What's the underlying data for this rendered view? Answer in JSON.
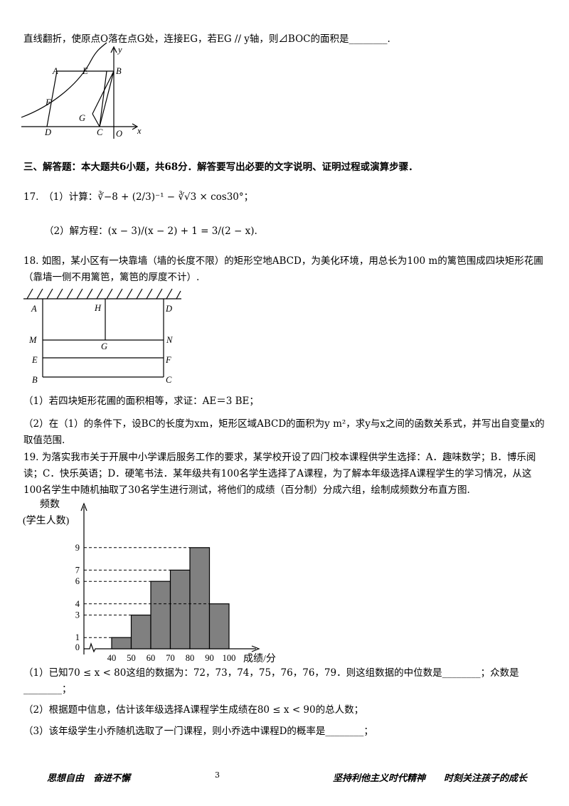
{
  "q16_tail": "直线翻折，使原点O落在点G处，连接EG，若EG // y轴，则⊿BOC的面积是________.",
  "figure1": {
    "labels": [
      "y",
      "A",
      "E",
      "B",
      "F",
      "G",
      "D",
      "C",
      "O",
      "x"
    ]
  },
  "section3": "三、解答题：本大题共6小题，共68分．解答要写出必要的文字说明、证明过程或演算步骤．",
  "q17": {
    "part1": "17.　（1）计算：∛−8 + (2/3)⁻¹ − ∛√3 × cos30°；",
    "part2": "（2）解方程：(x − 3)/(x − 2) + 1 = 3/(2 − x)."
  },
  "q18": {
    "intro": "18. 如图，某小区有一块靠墙（墙的长度不限）的矩形空地ABCD，为美化环境，用总长为100 m的篱笆围成四块矩形花圃（靠墙一侧不用篱笆，篱笆的厚度不计）.",
    "figure_labels": [
      "A",
      "H",
      "D",
      "M",
      "G",
      "N",
      "E",
      "F",
      "B",
      "C"
    ],
    "part1": "（1）若四块矩形花圃的面积相等，求证：AE＝3 BE；",
    "part2": "（2）在（1）的条件下，设BC的长度为xm，矩形区域ABCD的面积为y m²，求y与x之间的函数关系式，并写出自变量x的取值范围."
  },
  "q19": {
    "intro": "19. 为落实我市关于开展中小学课后服务工作的要求，某学校开设了四门校本课程供学生选择：A．趣味数学；B．博乐阅读；C．快乐英语；D．硬笔书法．某年级共有100名学生选择了A课程，为了解本年级选择A课程学生的学习情况，从这100名学生中随机抽取了30名学生进行测试，将他们的成绩（百分制）分成六组，绘制成频数分布直方图.",
    "histogram": {
      "type": "histogram",
      "y_label": [
        "频数",
        "(学生人数)"
      ],
      "x_label": "成绩/分",
      "bins": [
        40,
        50,
        60,
        70,
        80,
        90,
        100
      ],
      "counts": [
        1,
        3,
        6,
        7,
        9,
        4
      ],
      "yticks": [
        0,
        1,
        3,
        4,
        6,
        7,
        9
      ],
      "color": "#808080"
    },
    "part1": "（1）已知70 ≤ x < 80这组的数据为：72，73，74，75，76，76，79．则这组数据的中位数是________；众数是________；",
    "part2": "（2）根据题中信息，估计该年级选择A课程学生成绩在80 ≤ x < 90的总人数；",
    "part3": "（3）该年级学生小乔随机选取了一门课程，则小乔选中课程D的概率是________；"
  },
  "footer": {
    "left": "思想自由　奋进不懈",
    "page": "3",
    "right": "坚持利他主义时代精神　　时刻关注孩子的成长"
  }
}
